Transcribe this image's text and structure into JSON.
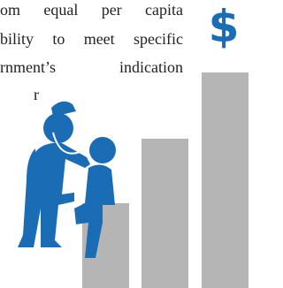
{
  "text": {
    "lines": [
      "om equal per capita",
      "bility to meet specific",
      "rnment’s indication",
      "r"
    ]
  },
  "icon": {
    "symbol": "$"
  }
}
